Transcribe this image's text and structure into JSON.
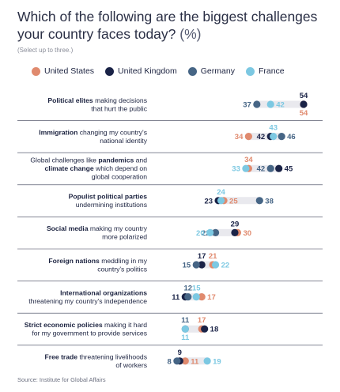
{
  "title_main": "Which of the following are the biggest challenges your country faces today?",
  "title_unit": "(%)",
  "subtitle": "(Select up to three.)",
  "source": "Source: Institute for Global Affairs",
  "colors": {
    "United States": "#e08a6e",
    "United Kingdom": "#1a2347",
    "Germany": "#466585",
    "France": "#7cc8e2",
    "track": "#e9e9ee",
    "divider": "#3a3f55"
  },
  "chart_data": {
    "type": "dot",
    "title": "Which of the following are the biggest challenges your country faces today? (%)",
    "subtitle": "(Select up to three.)",
    "series_order": [
      "United States",
      "United Kingdom",
      "Germany",
      "France"
    ],
    "legend_position": "top",
    "categories": [
      {
        "label_lines": [
          [
            {
              "t": "Political elites",
              "b": true
            },
            {
              "t": " making decisions",
              "b": false
            }
          ],
          [
            {
              "t": "that hurt the public",
              "b": false
            }
          ]
        ],
        "values": {
          "United States": 54,
          "United Kingdom": 54,
          "Germany": 37,
          "France": 42
        }
      },
      {
        "label_lines": [
          [
            {
              "t": "Immigration",
              "b": true
            },
            {
              "t": " changing my country's",
              "b": false
            }
          ],
          [
            {
              "t": "national identity",
              "b": false
            }
          ]
        ],
        "values": {
          "United States": 34,
          "United Kingdom": 42,
          "Germany": 46,
          "France": 43
        }
      },
      {
        "label_lines": [
          [
            {
              "t": "Global challenges like ",
              "b": false
            },
            {
              "t": "pandemics",
              "b": true
            },
            {
              "t": " and",
              "b": false
            }
          ],
          [
            {
              "t": "climate change",
              "b": true
            },
            {
              "t": " which depend on",
              "b": false
            }
          ],
          [
            {
              "t": "global cooperation",
              "b": false
            }
          ]
        ],
        "values": {
          "United States": 34,
          "United Kingdom": 45,
          "Germany": 42,
          "France": 33
        }
      },
      {
        "label_lines": [
          [
            {
              "t": "Populist political parties",
              "b": true
            }
          ],
          [
            {
              "t": "undermining institutions",
              "b": false
            }
          ]
        ],
        "values": {
          "United States": 25,
          "United Kingdom": 23,
          "Germany": 38,
          "France": 24
        }
      },
      {
        "label_lines": [
          [
            {
              "t": "Social media",
              "b": true
            },
            {
              "t": " making my country",
              "b": false
            }
          ],
          [
            {
              "t": "more polarized",
              "b": false
            }
          ]
        ],
        "values": {
          "United States": 30,
          "United Kingdom": 29,
          "Germany": 22,
          "France": 20
        }
      },
      {
        "label_lines": [
          [
            {
              "t": "Foreign nations",
              "b": true
            },
            {
              "t": " meddling in my",
              "b": false
            }
          ],
          [
            {
              "t": "country's politics",
              "b": false
            }
          ]
        ],
        "values": {
          "United States": 21,
          "United Kingdom": 17,
          "Germany": 15,
          "France": 22
        }
      },
      {
        "label_lines": [
          [
            {
              "t": "International organizations",
              "b": true
            }
          ],
          [
            {
              "t": "threatening my country's independence",
              "b": false
            }
          ]
        ],
        "values": {
          "United States": 17,
          "United Kingdom": 11,
          "Germany": 12,
          "France": 15
        }
      },
      {
        "label_lines": [
          [
            {
              "t": "Strict economic policies",
              "b": true
            },
            {
              "t": " making it hard",
              "b": false
            }
          ],
          [
            {
              "t": "for my government to provide services",
              "b": false
            }
          ]
        ],
        "values": {
          "United States": 17,
          "United Kingdom": 18,
          "Germany": 11,
          "France": 11
        }
      },
      {
        "label_lines": [
          [
            {
              "t": "Free trade",
              "b": true
            },
            {
              "t": " threatening livelihoods",
              "b": false
            }
          ],
          [
            {
              "t": "of workers",
              "b": false
            }
          ]
        ],
        "values": {
          "United States": 11,
          "United Kingdom": 9,
          "Germany": 8,
          "France": 19
        }
      }
    ],
    "label_side": {
      "0": {
        "United Kingdom": "above",
        "United States": "below",
        "Germany": "left",
        "France": "right"
      },
      "1": {
        "United States": "left",
        "United Kingdom": "left",
        "Germany": "right",
        "France": "above"
      },
      "2": {
        "France": "left",
        "United Kingdom": "right",
        "Germany": "left",
        "United States": "above"
      },
      "3": {
        "United Kingdom": "left",
        "United States": "right",
        "Germany": "right",
        "France": "above"
      },
      "4": {
        "France": "left",
        "Germany": "left",
        "United Kingdom": "above",
        "United States": "right"
      },
      "5": {
        "Germany": "left",
        "United Kingdom": "above",
        "United States": "above",
        "France": "right"
      },
      "6": {
        "United Kingdom": "left",
        "Germany": "above",
        "France": "above",
        "United States": "right"
      },
      "7": {
        "United States": "above",
        "United Kingdom": "right",
        "Germany": "above",
        "France": "below"
      },
      "8": {
        "Germany": "left",
        "United Kingdom": "above",
        "United States": "right",
        "France": "right"
      }
    }
  }
}
